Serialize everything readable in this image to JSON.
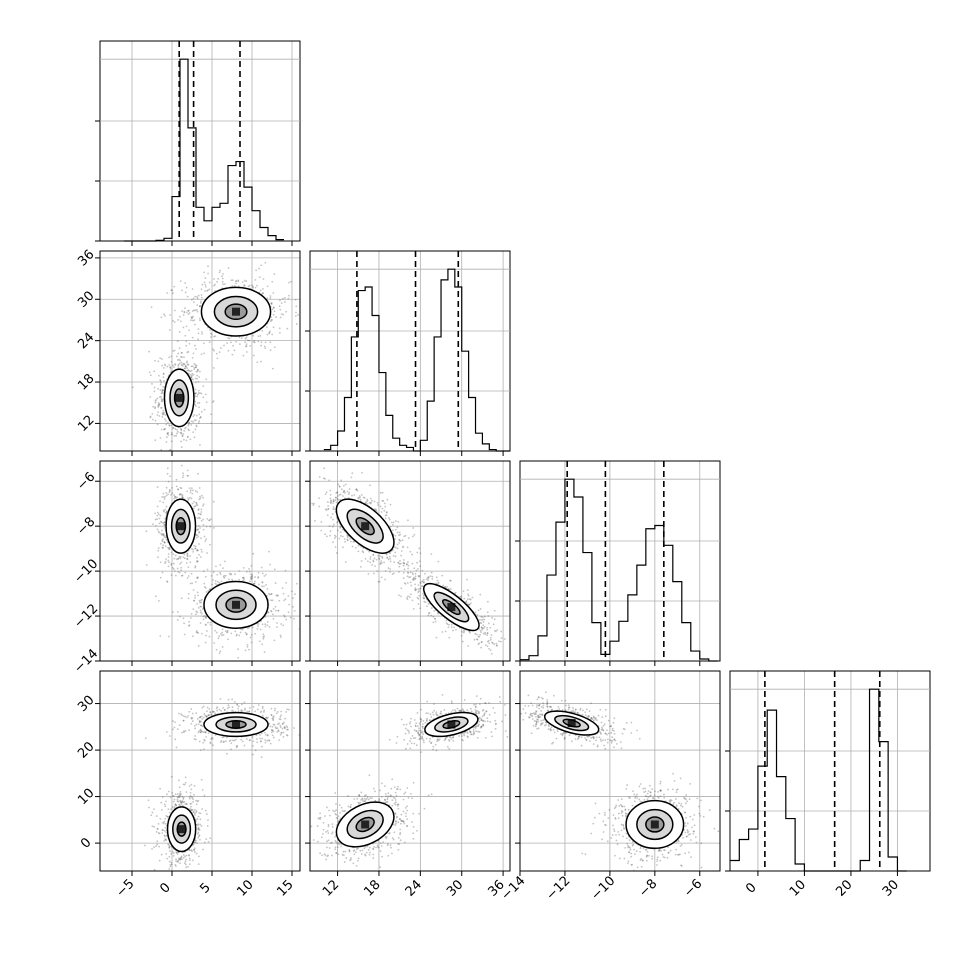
{
  "chart_data": {
    "type": "corner",
    "title": "",
    "colors": {
      "line": "#000000",
      "grid": "#b0b0b0",
      "points": "#555555"
    },
    "grid": true,
    "parameters": [
      {
        "range": [
          -9,
          16
        ],
        "ticks": [
          -5,
          0,
          5,
          10,
          15
        ],
        "tick_labels": [
          "−5",
          "0",
          "5",
          "10",
          "15"
        ],
        "quantiles": [
          0.9,
          2.7,
          8.5
        ]
      },
      {
        "range": [
          8,
          37
        ],
        "ticks": [
          12,
          18,
          24,
          30,
          36
        ],
        "tick_labels": [
          "12",
          "18",
          "24",
          "30",
          "36"
        ],
        "quantiles": [
          14.8,
          23.3,
          29.5
        ]
      },
      {
        "range": [
          -14,
          -5.1
        ],
        "ticks": [
          -14,
          -12,
          -10,
          -8,
          -6
        ],
        "tick_labels": [
          "−14",
          "−12",
          "−10",
          "−8",
          "−6"
        ],
        "quantiles": [
          -11.9,
          -10.2,
          -7.6
        ]
      },
      {
        "range": [
          -6,
          37
        ],
        "ticks": [
          0,
          10,
          20,
          30
        ],
        "tick_labels": [
          "0",
          "10",
          "20",
          "30"
        ],
        "quantiles": [
          1.5,
          16.5,
          26.2
        ]
      }
    ],
    "histograms": [
      {
        "param": 0,
        "bin_edges": [
          -6,
          -5,
          -4,
          -3,
          -2,
          -1,
          0,
          1,
          2,
          3,
          4,
          5,
          6,
          7,
          8,
          9,
          10,
          11,
          12,
          13,
          14
        ],
        "counts": [
          0,
          0,
          0,
          0,
          1,
          4,
          66,
          270,
          168,
          50,
          30,
          50,
          56,
          112,
          118,
          80,
          45,
          20,
          8,
          2
        ]
      },
      {
        "param": 1,
        "bin_edges": [
          10,
          11,
          12,
          13,
          14,
          15,
          16,
          17,
          18,
          19,
          20,
          21,
          22,
          23,
          24,
          25,
          26,
          27,
          28,
          29,
          30,
          31,
          32,
          33,
          34,
          35,
          36,
          37
        ],
        "counts": [
          2,
          8,
          28,
          75,
          160,
          225,
          230,
          190,
          110,
          50,
          18,
          8,
          5,
          0,
          15,
          70,
          160,
          240,
          255,
          230,
          140,
          75,
          25,
          10,
          2,
          0,
          0
        ]
      },
      {
        "param": 2,
        "bin_edges": [
          -14,
          -13.6,
          -13.2,
          -12.8,
          -12.4,
          -12,
          -11.6,
          -11.2,
          -10.8,
          -10.4,
          -10,
          -9.6,
          -9.2,
          -8.8,
          -8.4,
          -8,
          -7.6,
          -7.2,
          -6.8,
          -6.4,
          -6,
          -5.6,
          -5.2
        ],
        "counts": [
          2,
          8,
          38,
          130,
          210,
          275,
          248,
          164,
          58,
          10,
          30,
          60,
          100,
          145,
          200,
          205,
          175,
          120,
          58,
          15,
          3,
          0
        ]
      },
      {
        "param": 3,
        "bin_edges": [
          -6,
          -4,
          -2,
          0,
          2,
          4,
          6,
          8,
          10,
          12,
          14,
          16,
          18,
          20,
          22,
          24,
          26,
          28,
          30,
          32
        ],
        "counts": [
          15,
          45,
          60,
          150,
          230,
          135,
          75,
          10,
          0,
          0,
          0,
          0,
          0,
          0,
          15,
          260,
          185,
          20,
          0
        ]
      }
    ],
    "panels_2d": [
      {
        "x_param": 0,
        "y_param": 1,
        "clusters": [
          {
            "cx": 0.9,
            "cy": 15.7,
            "sx": 1.15,
            "sy": 2.6,
            "rho": 0
          },
          {
            "cx": 8.0,
            "cy": 28.2,
            "sx": 2.7,
            "sy": 2.2,
            "rho": 0
          }
        ]
      },
      {
        "x_param": 0,
        "y_param": 2,
        "clusters": [
          {
            "cx": 1.1,
            "cy": -8.0,
            "sx": 1.15,
            "sy": 0.75,
            "rho": 0
          },
          {
            "cx": 8.0,
            "cy": -11.5,
            "sx": 2.5,
            "sy": 0.65,
            "rho": 0
          }
        ]
      },
      {
        "x_param": 0,
        "y_param": 3,
        "clusters": [
          {
            "cx": 1.2,
            "cy": 3.0,
            "sx": 1.1,
            "sy": 3.0,
            "rho": 0
          },
          {
            "cx": 8.0,
            "cy": 25.5,
            "sx": 2.5,
            "sy": 1.6,
            "rho": 0
          }
        ]
      },
      {
        "x_param": 1,
        "y_param": 2,
        "clusters": [
          {
            "cx": 16.0,
            "cy": -8.0,
            "sx": 2.6,
            "sy": 0.75,
            "rho": -0.6
          },
          {
            "cx": 28.5,
            "cy": -11.6,
            "sx": 2.5,
            "sy": 0.65,
            "rho": -0.78
          }
        ]
      },
      {
        "x_param": 1,
        "y_param": 3,
        "clusters": [
          {
            "cx": 16.0,
            "cy": 4.0,
            "sx": 2.6,
            "sy": 3.0,
            "rho": 0.35
          },
          {
            "cx": 28.5,
            "cy": 25.5,
            "sx": 2.4,
            "sy": 1.6,
            "rho": 0.45
          }
        ]
      },
      {
        "x_param": 2,
        "y_param": 3,
        "clusters": [
          {
            "cx": -11.7,
            "cy": 25.8,
            "sx": 0.75,
            "sy": 1.6,
            "rho": -0.55
          },
          {
            "cx": -8.0,
            "cy": 4.0,
            "sx": 0.8,
            "sy": 3.2,
            "rho": 0
          }
        ]
      }
    ],
    "contour_levels_sigma": [
      0.5,
      1.0,
      1.6
    ]
  }
}
